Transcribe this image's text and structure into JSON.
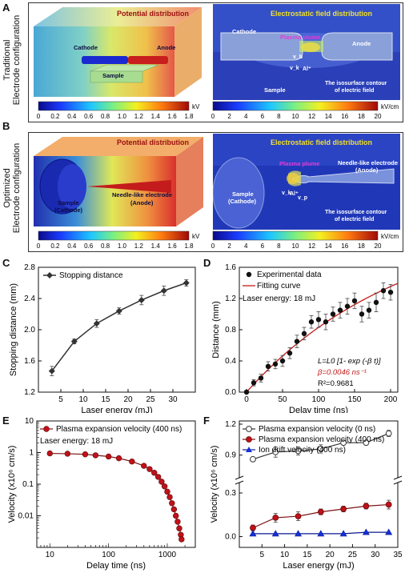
{
  "panels": {
    "A": "A",
    "B": "B",
    "C": "C",
    "D": "D",
    "E": "E",
    "F": "F"
  },
  "row_labels": {
    "A": "Traditional\nElectrode configuration",
    "A_line1": "Traditional",
    "A_line2": "Electrode configuration",
    "B_line1": "Optimized",
    "B_line2": "Electrode configuration"
  },
  "sim_A": {
    "left_title": "Potential distribution",
    "right_title": "Electrostatic field distribution",
    "cathode": "Cathode",
    "anode": "Anode",
    "sample": "Sample",
    "plasma_plume": "Plasma plume",
    "vb": "v_b",
    "vk": "v_k",
    "al": "Al⁺",
    "isosurface_1": "The isosurface contour",
    "isosurface_2": "of electric field",
    "left_cbar_unit": "kV",
    "right_cbar_unit": "kV/cm",
    "left_cbar_ticks": [
      "0",
      "0.2",
      "0.4",
      "0.6",
      "0.8",
      "1.0",
      "1.2",
      "1.4",
      "1.6",
      "1.8"
    ],
    "right_cbar_ticks": [
      "0",
      "2",
      "4",
      "6",
      "8",
      "10",
      "12",
      "14",
      "16",
      "18",
      "20"
    ]
  },
  "sim_B": {
    "left_title": "Potential distribution",
    "right_title": "Electrostatic field distribution",
    "sample_1": "Sample",
    "sample_2": "(Cathode)",
    "needle_1": "Needle-like electrode",
    "needle_2": "(Anode)",
    "rsample_1": "Sample",
    "rsample_2": "(Cathode)",
    "plasma_plume": "Plasma plume",
    "rneedle_1": "Needle-like electrode",
    "rneedle_2": "(Anode)",
    "vk": "v_k",
    "al": "Al⁺",
    "vp": "v_p",
    "isosurface_1": "The isosurface contour",
    "isosurface_2": "of electric field",
    "left_cbar_unit": "kV",
    "right_cbar_unit": "kV/cm",
    "left_cbar_ticks": [
      "0",
      "0.2",
      "0.4",
      "0.6",
      "0.8",
      "1.0",
      "1.2",
      "1.4",
      "1.6",
      "1.8"
    ],
    "right_cbar_ticks": [
      "0",
      "2",
      "4",
      "6",
      "8",
      "10",
      "12",
      "14",
      "16",
      "18",
      "20"
    ]
  },
  "chart_data": [
    {
      "panel": "C",
      "type": "line",
      "xlabel": "Laser energy (mJ)",
      "ylabel": "Stopping distance (mm)",
      "xlim": [
        0,
        35
      ],
      "ylim": [
        1.2,
        2.8
      ],
      "xticks": [
        5,
        10,
        15,
        20,
        25,
        30
      ],
      "yticks": [
        1.2,
        1.6,
        2.0,
        2.4,
        2.8
      ],
      "legend": "top-left",
      "series": [
        {
          "name": "Stopping distance",
          "x": [
            3,
            8,
            13,
            18,
            23,
            28,
            33
          ],
          "y": [
            1.47,
            1.85,
            2.08,
            2.24,
            2.38,
            2.5,
            2.6
          ],
          "err": [
            0.06,
            0.03,
            0.05,
            0.04,
            0.06,
            0.06,
            0.04
          ]
        }
      ]
    },
    {
      "panel": "D",
      "type": "scatter",
      "xlabel": "Delay time (ns)",
      "ylabel": "Distance (mm)",
      "xlim": [
        -10,
        210
      ],
      "ylim": [
        0,
        1.6
      ],
      "xticks": [
        0,
        50,
        100,
        150,
        200
      ],
      "yticks": [
        0.0,
        0.4,
        0.8,
        1.2,
        1.6
      ],
      "legend": "top-left",
      "annotation": "Laser energy: 18 mJ",
      "formula": "L=L0 [1- exp (-β t)]",
      "beta": "β=0.0046 ns⁻¹",
      "r2": "R²=0.9681",
      "series": [
        {
          "name": "Experimental data",
          "x": [
            0,
            10,
            20,
            30,
            40,
            50,
            60,
            70,
            80,
            90,
            100,
            110,
            120,
            130,
            140,
            150,
            160,
            170,
            180,
            190,
            200
          ],
          "y": [
            0.0,
            0.12,
            0.18,
            0.33,
            0.36,
            0.4,
            0.5,
            0.65,
            0.75,
            0.9,
            0.93,
            0.9,
            1.0,
            1.05,
            1.1,
            1.17,
            1.0,
            1.05,
            1.15,
            1.3,
            1.28
          ],
          "err": [
            0.02,
            0.04,
            0.05,
            0.06,
            0.06,
            0.07,
            0.07,
            0.08,
            0.08,
            0.08,
            0.1,
            0.1,
            0.09,
            0.1,
            0.1,
            0.1,
            0.1,
            0.1,
            0.12,
            0.1,
            0.1
          ]
        },
        {
          "name": "Fitting curve",
          "L0": 2.25,
          "beta": 0.0046
        }
      ]
    },
    {
      "panel": "E",
      "type": "line",
      "xlabel": "Delay time (ns)",
      "ylabel": "Velocity (x10⁶ cm/s)",
      "xscale": "log",
      "yscale": "log",
      "xlim": [
        6,
        3000
      ],
      "ylim": [
        0.001,
        10
      ],
      "xticks": [
        10,
        100,
        1000
      ],
      "yticks": [
        0.001,
        0.01,
        0.1,
        1,
        10
      ],
      "ytick_labels": [
        "",
        "0.01",
        "0.1",
        "1",
        "10"
      ],
      "legend": "top-left",
      "annotation": "Laser energy: 18 mJ",
      "series": [
        {
          "name": "Plasma expansion velocity (400 ns)",
          "x": [
            10,
            20,
            40,
            60,
            100,
            150,
            250,
            400,
            500,
            600,
            700,
            800,
            900,
            1000,
            1100,
            1200,
            1300,
            1400,
            1500,
            1600,
            1700,
            1750
          ],
          "y": [
            0.94,
            0.92,
            0.88,
            0.82,
            0.75,
            0.66,
            0.52,
            0.38,
            0.3,
            0.23,
            0.17,
            0.12,
            0.085,
            0.058,
            0.039,
            0.025,
            0.016,
            0.01,
            0.0065,
            0.004,
            0.0025,
            0.0018
          ]
        }
      ]
    },
    {
      "panel": "F",
      "type": "line",
      "xlabel": "Laser energy (mJ)",
      "ylabel": "Velocity (x10⁶ cm/s)",
      "xlim": [
        0,
        35
      ],
      "xticks": [
        5,
        10,
        15,
        20,
        25,
        30,
        35
      ],
      "yticks_lower": [
        0.0,
        0.3
      ],
      "yticks_upper": [
        0.9,
        1.2
      ],
      "broken_axis": true,
      "legend": "top-left",
      "series": [
        {
          "name": "Plasma expansion velocity (0 ns)",
          "marker": "open-circle",
          "x": [
            3,
            8,
            13,
            18,
            23,
            28,
            33
          ],
          "y": [
            0.86,
            0.93,
            0.94,
            0.96,
            1.02,
            1.02,
            1.11
          ],
          "err": [
            0.02,
            0.05,
            0.04,
            0.04,
            0.02,
            0.02,
            0.03
          ]
        },
        {
          "name": "Plasma expansion velocity (400 ns)",
          "marker": "filled-circle",
          "x": [
            3,
            8,
            13,
            18,
            23,
            28,
            33
          ],
          "y": [
            0.06,
            0.13,
            0.14,
            0.17,
            0.19,
            0.21,
            0.22
          ],
          "err": [
            0.02,
            0.03,
            0.03,
            0.02,
            0.02,
            0.02,
            0.03
          ]
        },
        {
          "name": "Ion drift velocity (400 ns)",
          "marker": "triangle",
          "x": [
            3,
            8,
            13,
            18,
            23,
            28,
            33
          ],
          "y": [
            0.02,
            0.02,
            0.02,
            0.02,
            0.02,
            0.03,
            0.03
          ],
          "err": [
            0,
            0,
            0,
            0,
            0,
            0,
            0
          ]
        }
      ]
    }
  ],
  "colors": {
    "line_c": "#333333",
    "red": "#c0111a",
    "blue": "#1530d8",
    "fit": "#c21a1a"
  }
}
